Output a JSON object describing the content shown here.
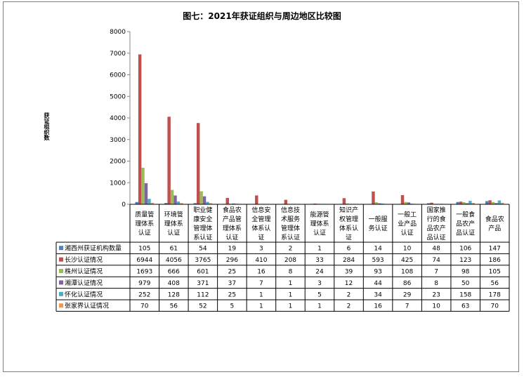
{
  "chart_data": {
    "type": "bar",
    "title": "图七：2021年获证组织与周边地区比较图",
    "ylabel": "获证组织数",
    "xlabel": "",
    "ylim": [
      0,
      8000
    ],
    "yticks": [
      0,
      1000,
      2000,
      3000,
      4000,
      5000,
      6000,
      7000,
      8000
    ],
    "grid": false,
    "legend": "data-table",
    "categories": [
      [
        "质量管",
        "理体系",
        "认证"
      ],
      [
        "环境管",
        "理体系",
        "认证"
      ],
      [
        "职业健",
        "康安全",
        "管理体",
        "系认证"
      ],
      [
        "食品农",
        "产品管",
        "理体系",
        "认证"
      ],
      [
        "信息安",
        "全管理",
        "体系认",
        "证"
      ],
      [
        "信息技",
        "术服务",
        "管理体",
        "系认证"
      ],
      [
        "能源管",
        "理体系",
        "认证"
      ],
      [
        "知识产",
        "权管理",
        "体系认",
        "证"
      ],
      [
        "一般服",
        "务认证"
      ],
      [
        "一般工",
        "业产品",
        "认证"
      ],
      [
        "国家推",
        "行的食",
        "品农产",
        "品认证"
      ],
      [
        "一般食",
        "品农产",
        "品认证"
      ],
      [
        "食品农",
        "产品"
      ]
    ],
    "series": [
      {
        "name": "湘西州获证机构数量",
        "color": "#4f81bd",
        "values": [
          105,
          61,
          54,
          19,
          3,
          2,
          1,
          6,
          14,
          10,
          48,
          106,
          147
        ]
      },
      {
        "name": "长沙认证情况",
        "color": "#c0504d",
        "values": [
          6944,
          4056,
          3765,
          296,
          410,
          208,
          33,
          284,
          593,
          425,
          74,
          123,
          186
        ]
      },
      {
        "name": "株州认证情况",
        "color": "#9bbb59",
        "values": [
          1693,
          666,
          601,
          25,
          16,
          8,
          24,
          39,
          93,
          108,
          7,
          98,
          105
        ]
      },
      {
        "name": "湘潭认证情况",
        "color": "#8064a2",
        "values": [
          979,
          408,
          371,
          37,
          7,
          1,
          3,
          12,
          44,
          86,
          8,
          50,
          56
        ]
      },
      {
        "name": "怀化认证情况",
        "color": "#4bacc6",
        "values": [
          252,
          128,
          112,
          25,
          1,
          1,
          5,
          2,
          34,
          29,
          23,
          158,
          178
        ]
      },
      {
        "name": "张家界认证情况",
        "color": "#f79646",
        "values": [
          70,
          56,
          52,
          5,
          1,
          1,
          1,
          2,
          16,
          7,
          10,
          63,
          70
        ]
      }
    ]
  }
}
